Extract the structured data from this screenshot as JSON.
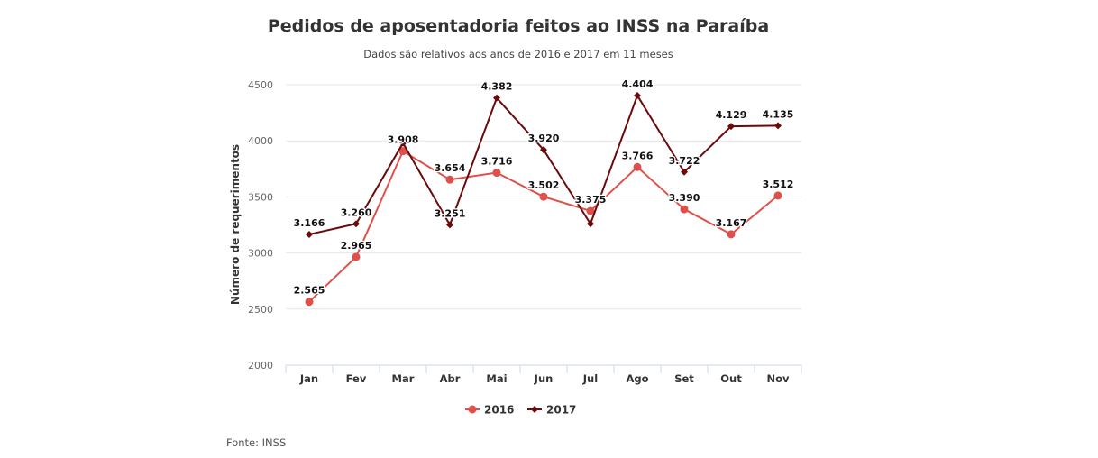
{
  "chart_data": {
    "type": "line",
    "title": "Pedidos de aposentadoria feitos ao INSS na Paraíba",
    "subtitle": "Dados são relativos aos anos de 2016 e 2017 em 11 meses",
    "xlabel": "",
    "ylabel": "Número de requerimentos",
    "categories": [
      "Jan",
      "Fev",
      "Mar",
      "Abr",
      "Mai",
      "Jun",
      "Jul",
      "Ago",
      "Set",
      "Out",
      "Nov"
    ],
    "ylim": [
      2000,
      4500
    ],
    "yticks": [
      2000,
      2500,
      3000,
      3500,
      4000,
      4500
    ],
    "grid": true,
    "legend_position": "bottom-center",
    "series": [
      {
        "name": "2016",
        "color": "#e0504a",
        "marker": "circle",
        "values": [
          2565,
          2965,
          3908,
          3654,
          3716,
          3502,
          3375,
          3766,
          3390,
          3167,
          3512
        ],
        "labels": [
          "2.565",
          "2.965",
          "3.908",
          "3.654",
          "3.716",
          "3.502",
          "3.375",
          "3.766",
          "3.390",
          "3.167",
          "3.512"
        ]
      },
      {
        "name": "2017",
        "color": "#6b0a0a",
        "marker": "diamond",
        "values": [
          3166,
          3260,
          3980,
          3251,
          4382,
          3920,
          3260,
          4404,
          3722,
          4129,
          4135
        ],
        "labels": [
          "3.166",
          "3.260",
          "",
          "3.251",
          "4.382",
          "3.920",
          "",
          "4.404",
          "3.722",
          "4.129",
          "4.135"
        ]
      }
    ],
    "source": "Fonte: INSS"
  }
}
